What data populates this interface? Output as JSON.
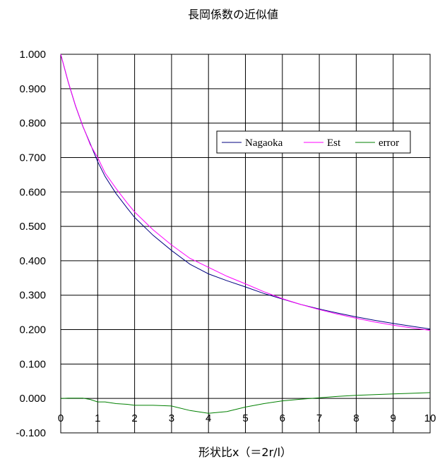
{
  "chart_data": {
    "type": "line",
    "title": "長岡係数の近似値",
    "xlabel": "形状比x（＝2r/l）",
    "ylabel": "",
    "xlim": [
      0,
      10
    ],
    "ylim": [
      -0.1,
      1.0
    ],
    "x_ticks": [
      "0",
      "1",
      "2",
      "3",
      "4",
      "5",
      "6",
      "7",
      "8",
      "9",
      "10"
    ],
    "y_ticks": [
      "1.000",
      "0.900",
      "0.800",
      "0.700",
      "0.600",
      "0.500",
      "0.400",
      "0.300",
      "0.200",
      "0.100",
      "0.000",
      "-0.100"
    ],
    "grid": true,
    "legend_position": "top-right",
    "series": [
      {
        "name": "Nagaoka",
        "color": "#000080",
        "x": [
          0,
          0.2,
          0.4,
          0.6,
          0.8,
          1.0,
          1.2,
          1.5,
          1.8,
          2.0,
          2.5,
          3.0,
          3.5,
          4.0,
          4.5,
          5.0,
          5.5,
          6.0,
          6.5,
          7.0,
          7.5,
          8.0,
          8.5,
          9.0,
          9.5,
          10.0
        ],
        "y": [
          1.0,
          0.92,
          0.85,
          0.79,
          0.74,
          0.688,
          0.645,
          0.595,
          0.553,
          0.526,
          0.474,
          0.43,
          0.39,
          0.362,
          0.342,
          0.324,
          0.305,
          0.289,
          0.273,
          0.26,
          0.248,
          0.237,
          0.227,
          0.218,
          0.21,
          0.202
        ]
      },
      {
        "name": "Est",
        "color": "#ff00ff",
        "x": [
          0,
          0.2,
          0.4,
          0.6,
          0.8,
          1.0,
          1.2,
          1.5,
          1.8,
          2.0,
          2.5,
          3.0,
          3.5,
          4.0,
          4.5,
          5.0,
          5.5,
          6.0,
          6.5,
          7.0,
          7.5,
          8.0,
          8.5,
          9.0,
          9.5,
          10.0
        ],
        "y": [
          1.0,
          0.921,
          0.851,
          0.791,
          0.737,
          0.7,
          0.655,
          0.61,
          0.568,
          0.542,
          0.49,
          0.446,
          0.407,
          0.381,
          0.355,
          0.333,
          0.31,
          0.29,
          0.273,
          0.258,
          0.245,
          0.233,
          0.222,
          0.213,
          0.205,
          0.198
        ]
      },
      {
        "name": "error",
        "color": "#008000",
        "x": [
          0,
          0.2,
          0.4,
          0.6,
          0.8,
          1.0,
          1.2,
          1.5,
          1.8,
          2.0,
          2.5,
          3.0,
          3.5,
          4.0,
          4.5,
          5.0,
          5.5,
          6.0,
          6.5,
          7.0,
          7.5,
          8.0,
          8.5,
          9.0,
          9.5,
          10.0
        ],
        "y": [
          0.0,
          0.001,
          0.001,
          0.001,
          -0.003,
          -0.01,
          -0.01,
          -0.015,
          -0.017,
          -0.02,
          -0.02,
          -0.022,
          -0.035,
          -0.043,
          -0.038,
          -0.025,
          -0.015,
          -0.007,
          -0.002,
          0.002,
          0.006,
          0.009,
          0.011,
          0.013,
          0.015,
          0.017
        ]
      }
    ]
  }
}
